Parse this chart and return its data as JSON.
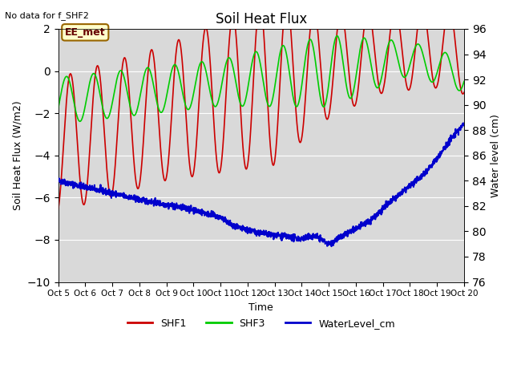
{
  "title": "Soil Heat Flux",
  "note": "No data for f_SHF2",
  "xlabel": "Time",
  "ylabel_left": "Soil Heat Flux (W/m2)",
  "ylabel_right": "Water level (cm)",
  "ylim_left": [
    -10,
    2
  ],
  "ylim_right": [
    76,
    96
  ],
  "yticks_left": [
    -10,
    -8,
    -6,
    -4,
    -2,
    0,
    2
  ],
  "yticks_right": [
    76,
    78,
    80,
    82,
    84,
    86,
    88,
    90,
    92,
    94,
    96
  ],
  "xtick_labels": [
    "Oct 5",
    "Oct 6",
    "Oct 7",
    "Oct 8",
    "Oct 9",
    "Oct 10",
    "Oct 11",
    "Oct 12",
    "Oct 13",
    "Oct 14",
    "Oct 15",
    "Oct 16",
    "Oct 17",
    "Oct 18",
    "Oct 19",
    "Oct 20"
  ],
  "color_SHF1": "#cc0000",
  "color_SHF3": "#00cc00",
  "color_water": "#0000cc",
  "bg_color": "#d9d9d9",
  "annotation_text": "EE_met",
  "annotation_bg": "#ffffcc",
  "annotation_border": "#996600"
}
